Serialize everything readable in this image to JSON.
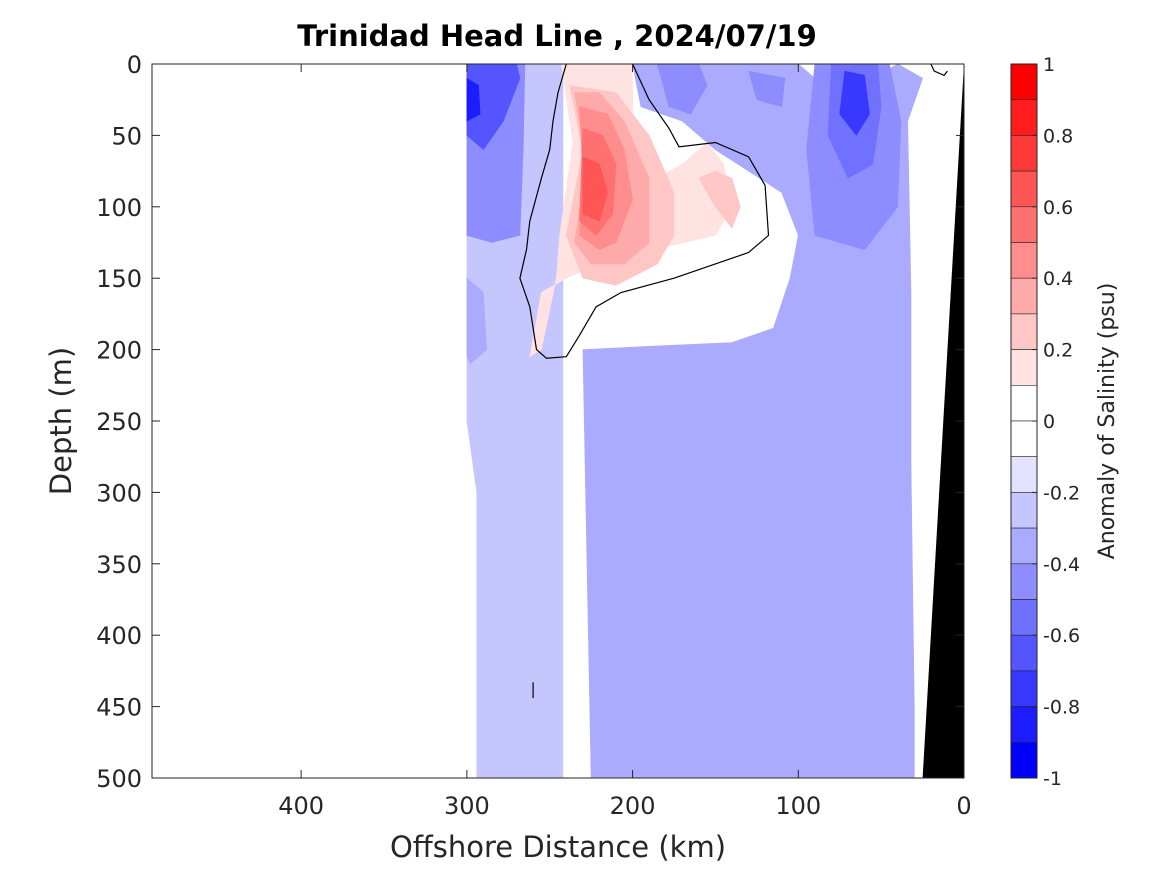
{
  "chart_data": {
    "type": "heatmap",
    "subtype": "filled-contour section",
    "title": "Trinidad Head Line , 2024/07/19",
    "xlabel": "Offshore Distance (km)",
    "ylabel": "Depth (m)",
    "x_axis_reversed": true,
    "y_axis_reversed": true,
    "xlim": [
      0,
      490
    ],
    "ylim": [
      0,
      500
    ],
    "xticks": [
      400,
      300,
      200,
      100,
      0
    ],
    "xtick_labels": [
      "400",
      "300",
      "200",
      "100",
      "0"
    ],
    "yticks": [
      0,
      50,
      100,
      150,
      200,
      250,
      300,
      350,
      400,
      450,
      500
    ],
    "ytick_labels": [
      "0",
      "50",
      "100",
      "150",
      "200",
      "250",
      "300",
      "350",
      "400",
      "450",
      "500"
    ],
    "colorbar": {
      "label": "Anomaly of Salinity (psu)",
      "range": [
        -1,
        1
      ],
      "ticks": [
        1,
        0.8,
        0.6,
        0.4,
        0.2,
        0,
        -0.2,
        -0.4,
        -0.6,
        -0.8,
        -1
      ],
      "tick_labels": [
        "1",
        "0.8",
        "0.6",
        "0.4",
        "0.2",
        "0",
        "-0.2",
        "-0.4",
        "-0.6",
        "-0.8",
        "-1"
      ],
      "levels": [
        {
          "lo": 0.9,
          "hi": 1.0,
          "color": "#ff0000"
        },
        {
          "lo": 0.8,
          "hi": 0.9,
          "color": "#ff1c1c"
        },
        {
          "lo": 0.7,
          "hi": 0.8,
          "color": "#ff3838"
        },
        {
          "lo": 0.6,
          "hi": 0.7,
          "color": "#ff5555"
        },
        {
          "lo": 0.5,
          "hi": 0.6,
          "color": "#ff7171"
        },
        {
          "lo": 0.4,
          "hi": 0.5,
          "color": "#ff8d8d"
        },
        {
          "lo": 0.3,
          "hi": 0.4,
          "color": "#ffaaaa"
        },
        {
          "lo": 0.2,
          "hi": 0.3,
          "color": "#ffc6c6"
        },
        {
          "lo": 0.1,
          "hi": 0.2,
          "color": "#ffe2e2"
        },
        {
          "lo": 0.0,
          "hi": 0.1,
          "color": "#ffffff"
        },
        {
          "lo": -0.1,
          "hi": 0.0,
          "color": "#ffffff"
        },
        {
          "lo": -0.2,
          "hi": -0.1,
          "color": "#e2e2ff"
        },
        {
          "lo": -0.3,
          "hi": -0.2,
          "color": "#c6c6ff"
        },
        {
          "lo": -0.4,
          "hi": -0.3,
          "color": "#aaaaff"
        },
        {
          "lo": -0.5,
          "hi": -0.4,
          "color": "#8d8dff"
        },
        {
          "lo": -0.6,
          "hi": -0.5,
          "color": "#7171ff"
        },
        {
          "lo": -0.7,
          "hi": -0.6,
          "color": "#5555ff"
        },
        {
          "lo": -0.8,
          "hi": -0.7,
          "color": "#3838ff"
        },
        {
          "lo": -0.9,
          "hi": -0.8,
          "color": "#1c1cff"
        },
        {
          "lo": -1.0,
          "hi": -0.9,
          "color": "#0000ff"
        }
      ]
    },
    "data_extent_km": [
      0,
      300
    ],
    "zero_contour_color": "#000000",
    "bathymetry_color": "#000000",
    "bathymetry": [
      [
        0,
        0
      ],
      [
        25,
        500
      ],
      [
        0,
        500
      ]
    ],
    "regions": [
      {
        "name": "offshore-fresh-band",
        "level": -0.2,
        "points": [
          [
            300,
            0
          ],
          [
            300,
            250
          ],
          [
            294,
            300
          ],
          [
            294,
            500
          ],
          [
            242,
            500
          ],
          [
            242,
            0
          ]
        ]
      },
      {
        "name": "deep-fresh-core",
        "level": -0.3,
        "points": [
          [
            225,
            500
          ],
          [
            230,
            200
          ],
          [
            195,
            198
          ],
          [
            140,
            195
          ],
          [
            115,
            185
          ],
          [
            105,
            150
          ],
          [
            100,
            120
          ],
          [
            110,
            90
          ],
          [
            150,
            60
          ],
          [
            170,
            40
          ],
          [
            195,
            30
          ],
          [
            200,
            0
          ],
          [
            100,
            0
          ],
          [
            80,
            20
          ],
          [
            55,
            10
          ],
          [
            40,
            0
          ],
          [
            25,
            10
          ],
          [
            34,
            40
          ],
          [
            32,
            160
          ],
          [
            32,
            280
          ],
          [
            30,
            450
          ],
          [
            30,
            500
          ]
        ]
      },
      {
        "name": "offshore-fresh-surface",
        "level": -0.4,
        "points": [
          [
            300,
            0
          ],
          [
            300,
            120
          ],
          [
            285,
            125
          ],
          [
            268,
            120
          ],
          [
            266,
            60
          ],
          [
            265,
            0
          ]
        ]
      },
      {
        "name": "offshore-fresh-patch",
        "level": -0.3,
        "points": [
          [
            300,
            150
          ],
          [
            290,
            160
          ],
          [
            288,
            200
          ],
          [
            298,
            210
          ],
          [
            300,
            205
          ]
        ]
      },
      {
        "name": "offshore-fresh-core",
        "level": -0.6,
        "points": [
          [
            300,
            0
          ],
          [
            300,
            50
          ],
          [
            290,
            60
          ],
          [
            278,
            40
          ],
          [
            268,
            10
          ],
          [
            270,
            0
          ]
        ]
      },
      {
        "name": "offshore-fresh-peak",
        "level": -0.8,
        "points": [
          [
            300,
            10
          ],
          [
            300,
            40
          ],
          [
            292,
            35
          ],
          [
            293,
            15
          ]
        ]
      },
      {
        "name": "nearshore-fresh-outer",
        "level": -0.4,
        "points": [
          [
            90,
            0
          ],
          [
            95,
            60
          ],
          [
            90,
            120
          ],
          [
            60,
            130
          ],
          [
            40,
            100
          ],
          [
            38,
            40
          ],
          [
            45,
            0
          ]
        ]
      },
      {
        "name": "nearshore-fresh-mid",
        "level": -0.5,
        "points": [
          [
            80,
            0
          ],
          [
            82,
            50
          ],
          [
            70,
            80
          ],
          [
            55,
            70
          ],
          [
            50,
            30
          ],
          [
            52,
            0
          ]
        ]
      },
      {
        "name": "nearshore-fresh-core",
        "level": -0.7,
        "points": [
          [
            72,
            5
          ],
          [
            75,
            35
          ],
          [
            65,
            50
          ],
          [
            57,
            35
          ],
          [
            60,
            8
          ]
        ]
      },
      {
        "name": "midshelf-fresh-patch",
        "level": -0.4,
        "points": [
          [
            185,
            0
          ],
          [
            178,
            30
          ],
          [
            165,
            35
          ],
          [
            155,
            15
          ],
          [
            160,
            0
          ]
        ]
      },
      {
        "name": "midshelf-fresh-patch-2",
        "level": -0.4,
        "points": [
          [
            130,
            5
          ],
          [
            125,
            25
          ],
          [
            110,
            30
          ],
          [
            108,
            10
          ]
        ]
      },
      {
        "name": "salty-plume-01",
        "level": 0.1,
        "points": [
          [
            243,
            0
          ],
          [
            236,
            55
          ],
          [
            244,
            120
          ],
          [
            246,
            150
          ],
          [
            255,
            200
          ],
          [
            262,
            205
          ],
          [
            255,
            160
          ],
          [
            240,
            150
          ],
          [
            220,
            140
          ],
          [
            180,
            128
          ],
          [
            150,
            120
          ],
          [
            140,
            100
          ],
          [
            145,
            70
          ],
          [
            155,
            55
          ],
          [
            170,
            70
          ],
          [
            185,
            80
          ],
          [
            200,
            40
          ],
          [
            200,
            0
          ]
        ]
      },
      {
        "name": "salty-plume-02",
        "level": 0.2,
        "points": [
          [
            238,
            15
          ],
          [
            230,
            60
          ],
          [
            240,
            120
          ],
          [
            230,
            150
          ],
          [
            210,
            155
          ],
          [
            185,
            140
          ],
          [
            175,
            120
          ],
          [
            175,
            90
          ],
          [
            190,
            50
          ],
          [
            210,
            20
          ]
        ]
      },
      {
        "name": "salty-plume-03",
        "level": 0.3,
        "points": [
          [
            235,
            20
          ],
          [
            228,
            70
          ],
          [
            235,
            125
          ],
          [
            225,
            140
          ],
          [
            205,
            140
          ],
          [
            190,
            125
          ],
          [
            190,
            80
          ],
          [
            205,
            40
          ],
          [
            220,
            20
          ]
        ]
      },
      {
        "name": "salty-plume-04",
        "level": 0.4,
        "points": [
          [
            232,
            30
          ],
          [
            230,
            80
          ],
          [
            232,
            120
          ],
          [
            220,
            130
          ],
          [
            210,
            125
          ],
          [
            200,
            95
          ],
          [
            205,
            60
          ],
          [
            215,
            35
          ]
        ]
      },
      {
        "name": "salty-plume-05",
        "level": 0.5,
        "points": [
          [
            230,
            45
          ],
          [
            232,
            110
          ],
          [
            222,
            120
          ],
          [
            212,
            105
          ],
          [
            210,
            70
          ],
          [
            218,
            50
          ]
        ]
      },
      {
        "name": "salty-plume-06",
        "level": 0.6,
        "points": [
          [
            230,
            65
          ],
          [
            230,
            105
          ],
          [
            220,
            110
          ],
          [
            215,
            90
          ],
          [
            220,
            70
          ]
        ]
      },
      {
        "name": "salty-patch",
        "level": 0.2,
        "points": [
          [
            160,
            80
          ],
          [
            150,
            100
          ],
          [
            140,
            115
          ],
          [
            135,
            100
          ],
          [
            140,
            80
          ],
          [
            150,
            75
          ]
        ]
      }
    ],
    "zero_contours": [
      {
        "closed": false,
        "points": [
          [
            240,
            0
          ],
          [
            245,
            20
          ],
          [
            248,
            40
          ],
          [
            250,
            60
          ],
          [
            255,
            80
          ],
          [
            262,
            110
          ],
          [
            264,
            130
          ],
          [
            268,
            150
          ],
          [
            262,
            170
          ],
          [
            258,
            200
          ],
          [
            252,
            206
          ],
          [
            240,
            205
          ],
          [
            232,
            190
          ],
          [
            222,
            170
          ],
          [
            207,
            160
          ],
          [
            175,
            150
          ],
          [
            130,
            132
          ],
          [
            118,
            120
          ],
          [
            120,
            85
          ],
          [
            130,
            65
          ],
          [
            150,
            55
          ],
          [
            172,
            58
          ],
          [
            178,
            45
          ],
          [
            190,
            25
          ],
          [
            200,
            0
          ]
        ]
      },
      {
        "closed": false,
        "points": [
          [
            20,
            0
          ],
          [
            18,
            5
          ],
          [
            12,
            8
          ],
          [
            10,
            5
          ]
        ]
      },
      {
        "closed": false,
        "points": [
          [
            260,
            433
          ],
          [
            260,
            444
          ]
        ]
      }
    ]
  }
}
